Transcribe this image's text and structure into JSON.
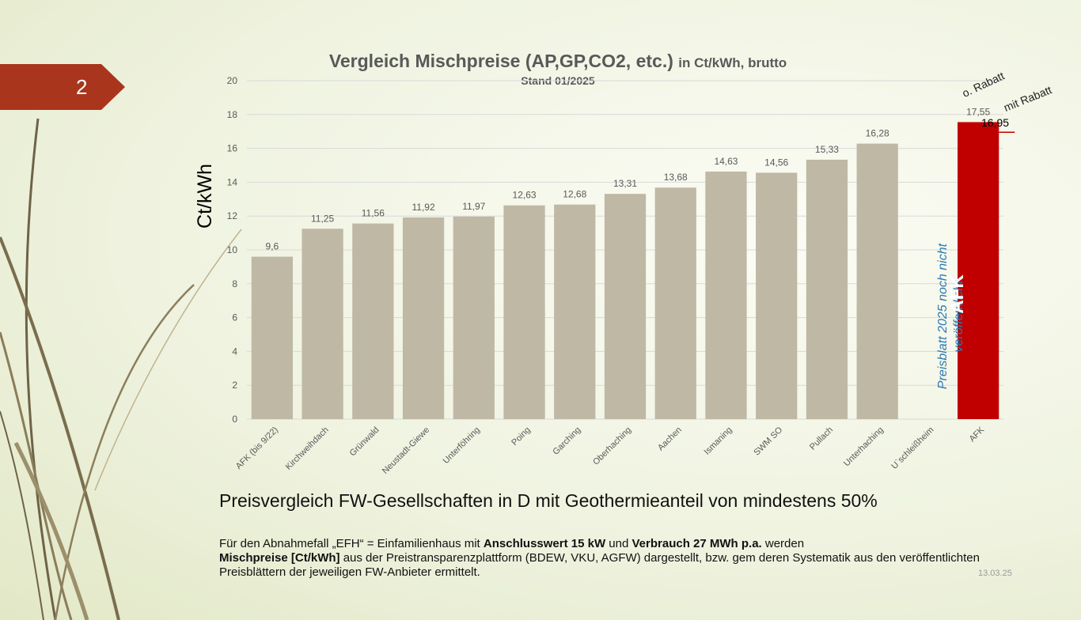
{
  "slide": {
    "number": "2",
    "date": "13.03.25"
  },
  "chart_data": {
    "type": "bar",
    "title": "Vergleich Mischpreise (AP,GP,CO2, etc.)",
    "title_unit": "in Ct/kWh,  brutto",
    "subtitle": "Stand 01/2025",
    "ylabel": "Ct/kWh",
    "ylim": [
      0,
      20
    ],
    "yticks": [
      0,
      2,
      4,
      6,
      8,
      10,
      12,
      14,
      16,
      18,
      20
    ],
    "grid": true,
    "categories": [
      "AFK  (bis 9/22)",
      "Kirchweihdach",
      "Grünwald",
      "Neustadt-Giewe",
      "Unterföhring",
      "Poing",
      "Garching",
      "Oberhaching",
      "Aachen",
      "Ismaning",
      "SWM SO",
      "Pullach",
      "Unterhaching",
      "U`schleißheim",
      "AFK"
    ],
    "values": [
      9.6,
      11.25,
      11.56,
      11.92,
      11.97,
      12.63,
      12.68,
      13.31,
      13.68,
      14.63,
      14.56,
      15.33,
      16.28,
      null,
      17.55
    ],
    "value_labels": [
      "9,6",
      "11,25",
      "11,56",
      "11,92",
      "11,97",
      "12,63",
      "12,68",
      "13,31",
      "13,68",
      "14,63",
      "14,56",
      "15,33",
      "16,28",
      "",
      "17,55"
    ],
    "colors": {
      "bar": "#bfb8a5",
      "highlight": "#c00000",
      "grid": "#d9d9d9",
      "text": "#595959"
    },
    "annotations": {
      "missing_note": "Preisblatt 2025 noch nicht veröffentlicht",
      "highlight_label": "AFK",
      "rabatt_without": "o. Rabatt",
      "rabatt_with": "mit Rabatt",
      "rabatt_value": 16.95,
      "rabatt_value_label": "16,95"
    }
  },
  "text": {
    "headline": "Preisvergleich FW-Gesellschaften in D mit Geothermieanteil von mindestens 50%",
    "desc_p1": "Für den Abnahmefall „EFH“ = Einfamilienhaus mit ",
    "desc_b1": "Anschlusswert 15 kW",
    "desc_p2": " und ",
    "desc_b2": "Verbrauch 27 MWh p.a.",
    "desc_p3": " werden ",
    "desc_b3": "Mischpreise [Ct/kWh]",
    "desc_p4": " aus der Preistransparenzplattform (BDEW, VKU, AGFW) dargestellt, bzw. gem deren Systematik aus den veröffentlichten Preisblättern der jeweiligen FW-Anbieter ermittelt."
  }
}
